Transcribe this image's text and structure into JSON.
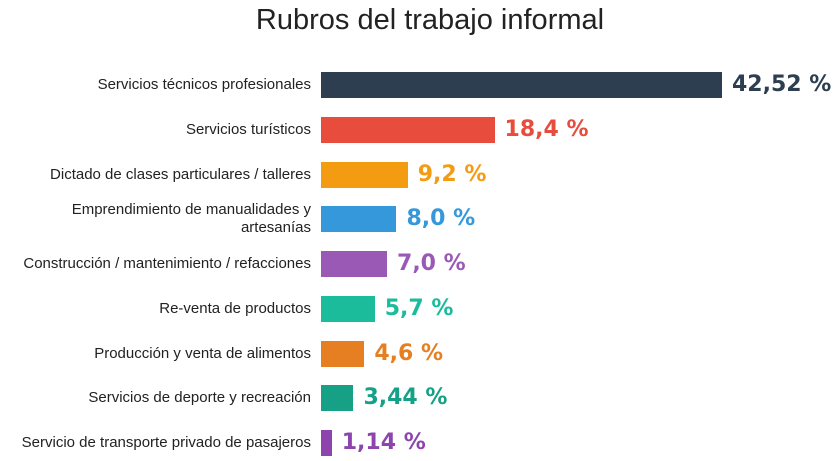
{
  "chart_data": {
    "type": "bar",
    "orientation": "horizontal",
    "title": "Rubros del trabajo informal",
    "categories": [
      "Servicios técnicos profesionales",
      "Servicios turísticos",
      "Dictado de clases particulares / talleres",
      "Emprendimiento de manualidades y artesanías",
      "Construcción / mantenimiento / refacciones",
      "Re-venta de productos",
      "Producción y venta de alimentos",
      "Servicios de deporte y recreación",
      "Servicio de transporte privado de pasajeros"
    ],
    "values": [
      42.52,
      18.4,
      9.2,
      8.0,
      7.0,
      5.7,
      4.6,
      3.44,
      1.14
    ],
    "value_labels": [
      "42,52 %",
      "18,4 %",
      "9,2 %",
      "8,0 %",
      "7,0 %",
      "5,7 %",
      "4,6 %",
      "3,44 %",
      "1,14 %"
    ],
    "colors": [
      "#2c3e50",
      "#e74c3c",
      "#f39c12",
      "#3498db",
      "#9b59b6",
      "#1abc9c",
      "#e67e22",
      "#16a085",
      "#8e44ad"
    ]
  }
}
